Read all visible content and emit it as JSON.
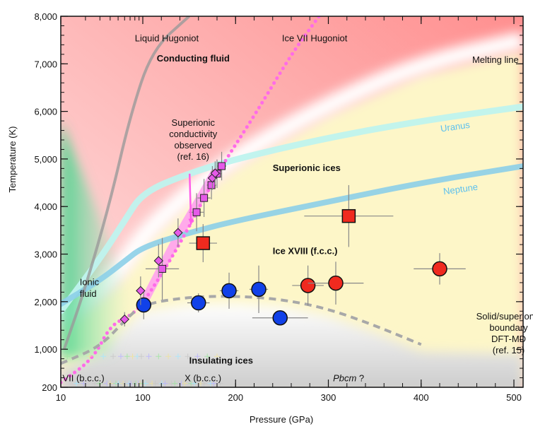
{
  "chart_data": {
    "type": "scatter",
    "title": "",
    "xlabel": "Pressure (GPa)",
    "ylabel": "Temperature (K)",
    "xlim": [
      10,
      510
    ],
    "ylim": [
      200,
      8000
    ],
    "x_scale": "logarithmic 10-100, linear 100-510",
    "x_ticks": [
      10,
      100,
      200,
      300,
      400,
      500
    ],
    "x_tick_labels": [
      "10",
      "100",
      "200",
      "300",
      "400",
      "500"
    ],
    "y_ticks": [
      200,
      1000,
      2000,
      3000,
      4000,
      5000,
      6000,
      7000,
      8000
    ],
    "y_tick_labels": [
      "200",
      "1,000",
      "2,000",
      "3,000",
      "4,000",
      "5,000",
      "6,000",
      "7,000",
      "8,000"
    ],
    "grid": false,
    "regions": [
      {
        "label": "Conducting fluid",
        "bold": true,
        "x": 115,
        "y": 7050
      },
      {
        "label": "Superionic ices",
        "bold": true,
        "x": 240,
        "y": 4750
      },
      {
        "label": "Ice XVIII (f.c.c.)",
        "bold": true,
        "x": 240,
        "y": 3000
      },
      {
        "label": "Insulating ices",
        "bold": true,
        "x": 150,
        "y": 700
      },
      {
        "label": "Ionic",
        "bold": false,
        "x": 17,
        "y": 2350
      },
      {
        "label": "fluid",
        "bold": false,
        "x": 17,
        "y": 2100
      },
      {
        "label": "VII (b.c.c.)",
        "bold": false,
        "x": 10.5,
        "y": 330
      },
      {
        "label": "X (b.c.c.)",
        "bold": false,
        "x": 145,
        "y": 330
      },
      {
        "label": "Pbcm ?",
        "bold": false,
        "italic_part": "Pbcm",
        "x": 305,
        "y": 330
      }
    ],
    "annotations": [
      {
        "text": "Liquid Hugoniot",
        "x": 80,
        "y": 7470
      },
      {
        "text": "Ice VII Hugoniot",
        "x": 250,
        "y": 7470
      },
      {
        "text": "Melting line",
        "x": 455,
        "y": 7020
      },
      {
        "lines": [
          "Superionic",
          "conductivity",
          "observed",
          "(ref. 16)"
        ],
        "x": 120,
        "y": 5700,
        "arrow_to": [
          152,
          3620
        ]
      },
      {
        "lines": [
          "Solid/superionic",
          "boundary",
          "DFT-MD",
          "(ref. 15)"
        ],
        "x": 460,
        "y": 1630
      }
    ],
    "curves": [
      {
        "name": "Uranus",
        "label": "Uranus",
        "color": "#bff3ee",
        "label_color": "#5cc0ee",
        "x": [
          10,
          30,
          60,
          100,
          150,
          200,
          300,
          400,
          510
        ],
        "y": [
          1800,
          2900,
          3700,
          4300,
          4700,
          5000,
          5450,
          5800,
          6100
        ]
      },
      {
        "name": "Neptune",
        "label": "Neptune",
        "color": "#8ccfe8",
        "label_color": "#5cc0ee",
        "x": [
          10,
          30,
          60,
          100,
          150,
          200,
          300,
          400,
          510
        ],
        "y": [
          1950,
          2450,
          2850,
          3150,
          3450,
          3700,
          4100,
          4500,
          4850
        ]
      },
      {
        "name": "Liquid Hugoniot",
        "color": "#9a9a9a",
        "x": [
          11,
          20,
          40,
          70,
          110,
          150
        ],
        "y": [
          1000,
          2300,
          4100,
          5900,
          7300,
          8000
        ]
      },
      {
        "name": "Ice VII Hugoniot",
        "color": "#ff6be8",
        "style": "dotted",
        "x": [
          10,
          25,
          40,
          70,
          100,
          140,
          180,
          220,
          260,
          290
        ],
        "y": [
          300,
          800,
          1500,
          1700,
          1950,
          3200,
          4700,
          5900,
          7200,
          8000
        ]
      },
      {
        "name": "Solid/superionic boundary DFT-MD",
        "color": "#a8a8a8",
        "style": "dashed",
        "x": [
          10,
          30,
          60,
          100,
          150,
          200,
          250,
          300,
          350,
          400
        ],
        "y": [
          700,
          1050,
          1600,
          1950,
          2100,
          2120,
          2050,
          1850,
          1500,
          1100
        ]
      }
    ],
    "bands": [
      {
        "name": "Melting line",
        "color": "#ffffff",
        "x": [
          10,
          50,
          100,
          150,
          200,
          300,
          400,
          510
        ],
        "y": [
          1600,
          2600,
          3400,
          4300,
          5050,
          6150,
          7000,
          7500
        ]
      },
      {
        "name": "Superionic conductivity observed",
        "color": "#ff9cf0",
        "x": [
          100,
          120,
          140,
          160,
          180
        ],
        "y": [
          1950,
          2700,
          3450,
          4100,
          4800
        ]
      }
    ],
    "series": [
      {
        "name": "Insulating ices (blue circles)",
        "marker": "circle",
        "color": "#1141e8",
        "points": [
          {
            "x": 101,
            "y": 1930,
            "xerr": 0,
            "yerr": 300
          },
          {
            "x": 160,
            "y": 1975,
            "xerr": 12,
            "yerr": 200
          },
          {
            "x": 193,
            "y": 2230,
            "xerr": 10,
            "yerr": 380
          },
          {
            "x": 225,
            "y": 2260,
            "xerr": 10,
            "yerr": 500
          },
          {
            "x": 248,
            "y": 1660,
            "xerr": 30,
            "yerr": 150
          }
        ]
      },
      {
        "name": "Ice XVIII (red circles)",
        "marker": "circle",
        "color": "#f02a1f",
        "points": [
          {
            "x": 278,
            "y": 2340,
            "xerr": 17,
            "yerr": 420
          },
          {
            "x": 308,
            "y": 2390,
            "xerr": 30,
            "yerr": 450
          },
          {
            "x": 420,
            "y": 2690,
            "xerr": 28,
            "yerr": 330
          }
        ]
      },
      {
        "name": "Superionic (red squares)",
        "marker": "square",
        "color": "#f02a1f",
        "points": [
          {
            "x": 165,
            "y": 3230,
            "xerr": 15,
            "yerr": 400
          },
          {
            "x": 322,
            "y": 3800,
            "xerr": 48,
            "yerr": 650
          }
        ]
      },
      {
        "name": "Superionic conductivity (magenta squares)",
        "marker": "square",
        "color": "#e55ae8",
        "points": [
          {
            "x": 121,
            "y": 2690,
            "xerr": 18,
            "yerr": 650
          },
          {
            "x": 158,
            "y": 3880,
            "xerr": 8,
            "yerr": 400
          },
          {
            "x": 166,
            "y": 4180,
            "xerr": 7,
            "yerr": 400
          },
          {
            "x": 174,
            "y": 4450,
            "xerr": 5,
            "yerr": 300
          },
          {
            "x": 180,
            "y": 4690,
            "xerr": 5,
            "yerr": 300
          },
          {
            "x": 185,
            "y": 4850,
            "xerr": 5,
            "yerr": 300
          }
        ]
      },
      {
        "name": "Superionic conductivity (magenta diamonds)",
        "marker": "diamond",
        "color": "#e55ae8",
        "points": [
          {
            "x": 60,
            "y": 1630,
            "xerr": 0,
            "yerr": 150
          },
          {
            "x": 94,
            "y": 2230,
            "xerr": 0,
            "yerr": 300
          },
          {
            "x": 117,
            "y": 2860,
            "xerr": 0,
            "yerr": 350
          },
          {
            "x": 138,
            "y": 3450,
            "xerr": 0,
            "yerr": 300
          },
          {
            "x": 175,
            "y": 4600,
            "xerr": 0,
            "yerr": 250
          },
          {
            "x": 178,
            "y": 4700,
            "xerr": 0,
            "yerr": 250
          }
        ]
      }
    ]
  }
}
